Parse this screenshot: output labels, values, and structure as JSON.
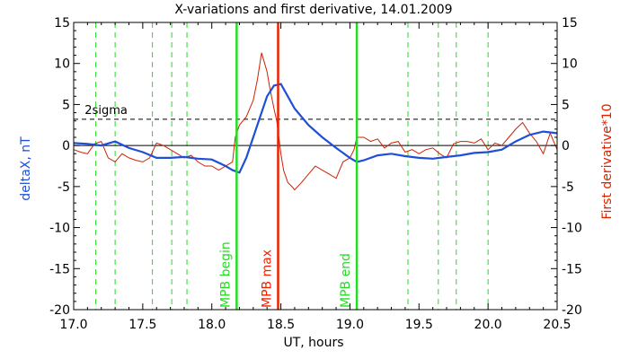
{
  "chart_data": {
    "type": "line",
    "title": "X-variations and first derivative, 14.01.2009",
    "xlabel": "UT, hours",
    "ylabel_left": "deltaX, nT",
    "ylabel_right": "First derivative*10",
    "xlim": [
      17.0,
      20.5
    ],
    "ylim": [
      -20,
      15
    ],
    "xticks": [
      "17.0",
      "17.5",
      "18.0",
      "18.5",
      "19.0",
      "19.5",
      "20.0",
      "20.5"
    ],
    "yticks": [
      "15",
      "10",
      "5",
      "0",
      "-5",
      "-10",
      "-15",
      "-20"
    ],
    "threshold": {
      "label": "2sigma",
      "value": 3.2
    },
    "zero_line": 0,
    "markers": [
      {
        "label": "MPB begin",
        "x": 18.18,
        "color": "#22dd22"
      },
      {
        "label": "MPB max",
        "x": 18.48,
        "color": "#ee2200"
      },
      {
        "label": "MPB end",
        "x": 19.05,
        "color": "#22dd22"
      }
    ],
    "dashed_verticals_x": [
      17.16,
      17.3,
      17.57,
      17.71,
      17.82,
      19.42,
      19.64,
      19.77,
      20.0
    ],
    "colors": {
      "deltaX": "#1f4fd8",
      "derivative": "#cc2200",
      "dashed_verticals": "#22dd22",
      "left_axis_label": "#1f4fd8",
      "right_axis_label": "#dd2200"
    },
    "series": [
      {
        "key": "deltaX",
        "x": [
          17.0,
          17.1,
          17.2,
          17.3,
          17.4,
          17.5,
          17.6,
          17.7,
          17.8,
          17.9,
          18.0,
          18.1,
          18.15,
          18.2,
          18.25,
          18.3,
          18.35,
          18.4,
          18.45,
          18.5,
          18.55,
          18.6,
          18.7,
          18.8,
          18.9,
          19.0,
          19.05,
          19.1,
          19.2,
          19.3,
          19.4,
          19.5,
          19.6,
          19.7,
          19.8,
          19.9,
          20.0,
          20.1,
          20.2,
          20.3,
          20.4,
          20.5
        ],
        "y": [
          0.3,
          0.2,
          0.0,
          0.5,
          -0.3,
          -0.8,
          -1.5,
          -1.5,
          -1.4,
          -1.6,
          -1.7,
          -2.5,
          -3.0,
          -3.3,
          -1.5,
          1.0,
          3.5,
          6.0,
          7.3,
          7.5,
          6.0,
          4.5,
          2.5,
          1.0,
          -0.3,
          -1.5,
          -2.0,
          -1.8,
          -1.2,
          -1.0,
          -1.3,
          -1.5,
          -1.6,
          -1.4,
          -1.2,
          -0.9,
          -0.8,
          -0.5,
          0.5,
          1.3,
          1.7,
          1.5
        ]
      },
      {
        "key": "derivative",
        "x": [
          17.0,
          17.05,
          17.1,
          17.15,
          17.2,
          17.25,
          17.3,
          17.35,
          17.4,
          17.45,
          17.5,
          17.55,
          17.6,
          17.65,
          17.7,
          17.75,
          17.8,
          17.85,
          17.9,
          17.95,
          18.0,
          18.05,
          18.1,
          18.15,
          18.17,
          18.2,
          18.25,
          18.3,
          18.33,
          18.36,
          18.4,
          18.42,
          18.45,
          18.47,
          18.5,
          18.52,
          18.55,
          18.58,
          18.6,
          18.65,
          18.7,
          18.75,
          18.8,
          18.85,
          18.9,
          18.95,
          19.0,
          19.03,
          19.05,
          19.1,
          19.15,
          19.2,
          19.25,
          19.3,
          19.35,
          19.4,
          19.45,
          19.5,
          19.55,
          19.6,
          19.65,
          19.7,
          19.75,
          19.8,
          19.85,
          19.9,
          19.95,
          20.0,
          20.05,
          20.1,
          20.15,
          20.2,
          20.25,
          20.3,
          20.35,
          20.4,
          20.45,
          20.5
        ],
        "y": [
          -0.5,
          -0.8,
          -1.0,
          0.2,
          0.5,
          -1.5,
          -2.0,
          -1.0,
          -1.5,
          -1.8,
          -2.0,
          -1.5,
          0.3,
          0.0,
          -0.5,
          -1.0,
          -1.5,
          -1.2,
          -2.0,
          -2.5,
          -2.5,
          -3.0,
          -2.5,
          -2.0,
          1.0,
          2.5,
          3.5,
          5.5,
          8.0,
          11.3,
          9.0,
          7.0,
          4.5,
          3.0,
          -1.0,
          -3.0,
          -4.5,
          -5.0,
          -5.4,
          -4.5,
          -3.5,
          -2.5,
          -3.0,
          -3.5,
          -4.0,
          -2.0,
          -1.5,
          -0.5,
          1.0,
          1.0,
          0.5,
          0.8,
          -0.3,
          0.3,
          0.5,
          -0.8,
          -0.5,
          -1.0,
          -0.5,
          -0.3,
          -1.0,
          -1.5,
          0.2,
          0.5,
          0.5,
          0.3,
          0.8,
          -0.5,
          0.3,
          0.0,
          1.0,
          2.0,
          2.8,
          1.5,
          0.5,
          -1.0,
          1.5,
          -0.5
        ]
      }
    ]
  }
}
